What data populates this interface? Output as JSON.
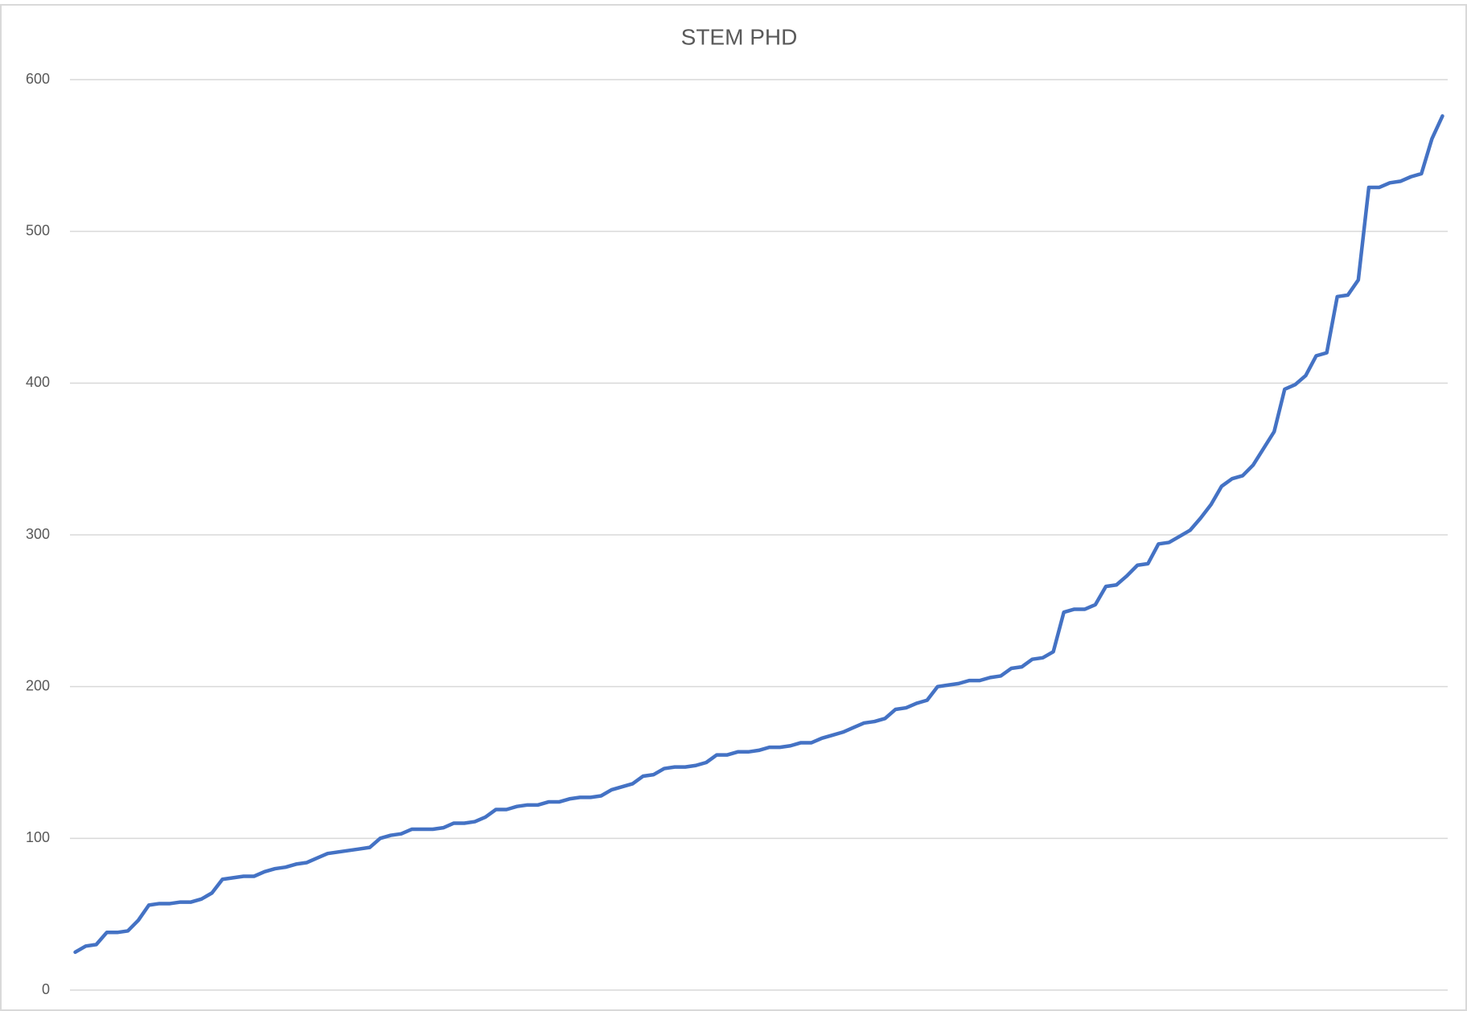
{
  "chart_data": {
    "type": "line",
    "title": "STEM PHD",
    "categories": [
      null,
      null,
      null,
      null,
      null,
      null,
      null,
      null,
      null,
      null,
      null,
      null,
      null,
      null,
      null,
      null,
      null,
      null,
      null,
      null,
      null,
      null,
      null,
      null,
      null,
      null,
      null,
      null,
      null,
      null,
      null,
      null,
      null,
      null,
      null,
      null,
      null,
      null,
      null,
      null,
      null,
      null,
      null,
      null,
      null,
      null,
      null,
      null,
      null,
      null,
      null,
      null,
      null,
      null,
      null,
      null,
      null,
      null,
      null,
      null,
      null,
      null,
      null,
      null,
      null,
      null,
      null,
      null,
      null,
      null,
      null,
      null,
      null,
      null,
      null,
      null,
      null,
      null,
      null,
      null,
      null,
      null,
      null,
      null,
      null,
      null,
      null,
      null,
      null,
      null,
      null,
      null,
      null,
      null,
      null,
      null,
      null,
      null,
      null,
      null,
      null,
      null,
      null,
      null,
      null,
      null,
      null,
      null,
      null,
      null,
      null,
      null,
      null,
      null,
      null,
      null,
      null,
      null,
      null,
      null,
      null,
      null,
      null,
      null,
      null,
      null,
      null,
      null,
      null,
      null,
      null
    ],
    "series": [
      {
        "color": "#4472c4",
        "values": [
          25,
          29,
          30,
          38,
          38,
          39,
          46,
          56,
          57,
          57,
          58,
          58,
          60,
          64,
          73,
          74,
          75,
          75,
          78,
          80,
          81,
          83,
          84,
          87,
          90,
          91,
          92,
          93,
          94,
          100,
          102,
          103,
          106,
          106,
          106,
          107,
          110,
          110,
          111,
          114,
          119,
          119,
          121,
          122,
          122,
          124,
          124,
          126,
          127,
          127,
          128,
          132,
          134,
          136,
          141,
          142,
          146,
          147,
          147,
          148,
          150,
          155,
          155,
          157,
          157,
          158,
          160,
          160,
          161,
          163,
          163,
          166,
          168,
          170,
          173,
          176,
          177,
          179,
          185,
          186,
          189,
          191,
          200,
          201,
          202,
          204,
          204,
          206,
          207,
          212,
          213,
          218,
          219,
          223,
          249,
          251,
          251,
          254,
          266,
          267,
          273,
          280,
          281,
          294,
          295,
          299,
          303,
          311,
          320,
          332,
          337,
          339,
          346,
          357,
          368,
          396,
          399,
          405,
          418,
          420,
          457,
          458,
          468,
          529,
          529,
          532,
          533,
          536,
          538,
          561,
          576
        ]
      }
    ],
    "ylim": [
      0,
      600
    ],
    "yticks": [
      0,
      100,
      200,
      300,
      400,
      500,
      600
    ],
    "grid": true
  }
}
